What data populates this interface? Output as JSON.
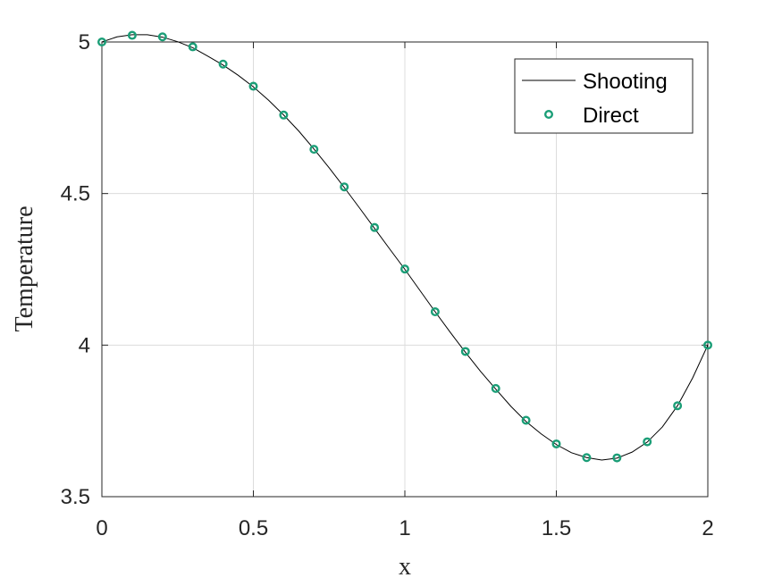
{
  "chart_data": {
    "type": "line",
    "xlabel": "x",
    "ylabel": "Temperature",
    "xlim": [
      0,
      2
    ],
    "ylim": [
      3.5,
      5
    ],
    "xticks": [
      "0",
      "0.5",
      "1",
      "1.5",
      "2"
    ],
    "yticks": [
      "3.5",
      "4",
      "4.5",
      "5"
    ],
    "grid": true,
    "legend": {
      "placement": "top-right"
    },
    "series": [
      {
        "name": "Shooting",
        "style": "line",
        "color": "#000000",
        "x": [
          0,
          0.05,
          0.1,
          0.15,
          0.2,
          0.25,
          0.3,
          0.35,
          0.4,
          0.45,
          0.5,
          0.55,
          0.6,
          0.65,
          0.7,
          0.75,
          0.8,
          0.85,
          0.9,
          0.95,
          1.0,
          1.05,
          1.1,
          1.15,
          1.2,
          1.25,
          1.3,
          1.35,
          1.4,
          1.45,
          1.5,
          1.55,
          1.6,
          1.65,
          1.7,
          1.75,
          1.8,
          1.85,
          1.9,
          1.95,
          2.0
        ],
        "y": [
          5.0,
          5.017,
          5.024,
          5.024,
          5.016,
          5.001,
          4.981,
          4.953,
          4.924,
          4.89,
          4.852,
          4.808,
          4.759,
          4.706,
          4.647,
          4.585,
          4.52,
          4.453,
          4.385,
          4.317,
          4.25,
          4.18,
          4.11,
          4.042,
          3.976,
          3.913,
          3.855,
          3.798,
          3.748,
          3.707,
          3.672,
          3.645,
          3.629,
          3.621,
          3.627,
          3.647,
          3.68,
          3.73,
          3.8,
          3.892,
          4.0
        ]
      },
      {
        "name": "Direct",
        "style": "markers",
        "color": "#1b9e77",
        "x": [
          0,
          0.1,
          0.2,
          0.3,
          0.4,
          0.5,
          0.6,
          0.7,
          0.8,
          0.9,
          1.0,
          1.1,
          1.2,
          1.3,
          1.4,
          1.5,
          1.6,
          1.7,
          1.8,
          1.9,
          2.0
        ],
        "y": [
          5.0,
          5.022,
          5.017,
          4.984,
          4.927,
          4.854,
          4.759,
          4.646,
          4.522,
          4.388,
          4.251,
          4.11,
          3.979,
          3.857,
          3.752,
          3.674,
          3.629,
          3.628,
          3.681,
          3.8,
          4.0
        ]
      }
    ]
  }
}
